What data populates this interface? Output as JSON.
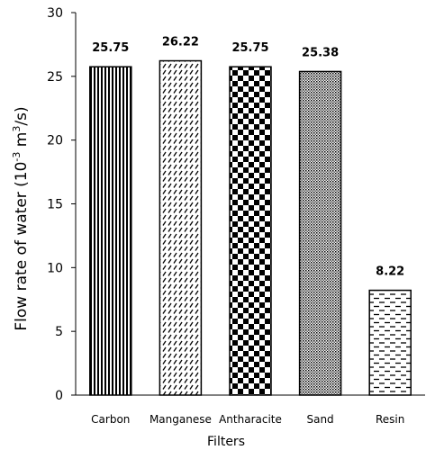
{
  "chart_data": {
    "type": "bar",
    "categories": [
      "Carbon",
      "Manganese",
      "Antharacite",
      "Sand",
      "Resin"
    ],
    "values": [
      25.75,
      26.22,
      25.75,
      25.38,
      8.22
    ],
    "data_labels": [
      "25.75",
      "26.22",
      "25.75",
      "25.38",
      "8.22"
    ],
    "xlabel": "Filters",
    "ylabel": {
      "prefix": "Flow rate of water (10",
      "exp1": "-3",
      "mid": " m",
      "exp2": "3",
      "suffix": "/s)"
    },
    "ylim": [
      0,
      30
    ],
    "yticks": [
      0,
      5,
      10,
      15,
      20,
      25,
      30
    ],
    "grid": false,
    "legend": "none",
    "patterns": [
      "vertical-lines",
      "diagonal-dashes",
      "checkerboard",
      "fine-dots",
      "horizontal-dashes"
    ],
    "colors": {
      "ink": "#000000",
      "fill": "#ffffff"
    }
  }
}
